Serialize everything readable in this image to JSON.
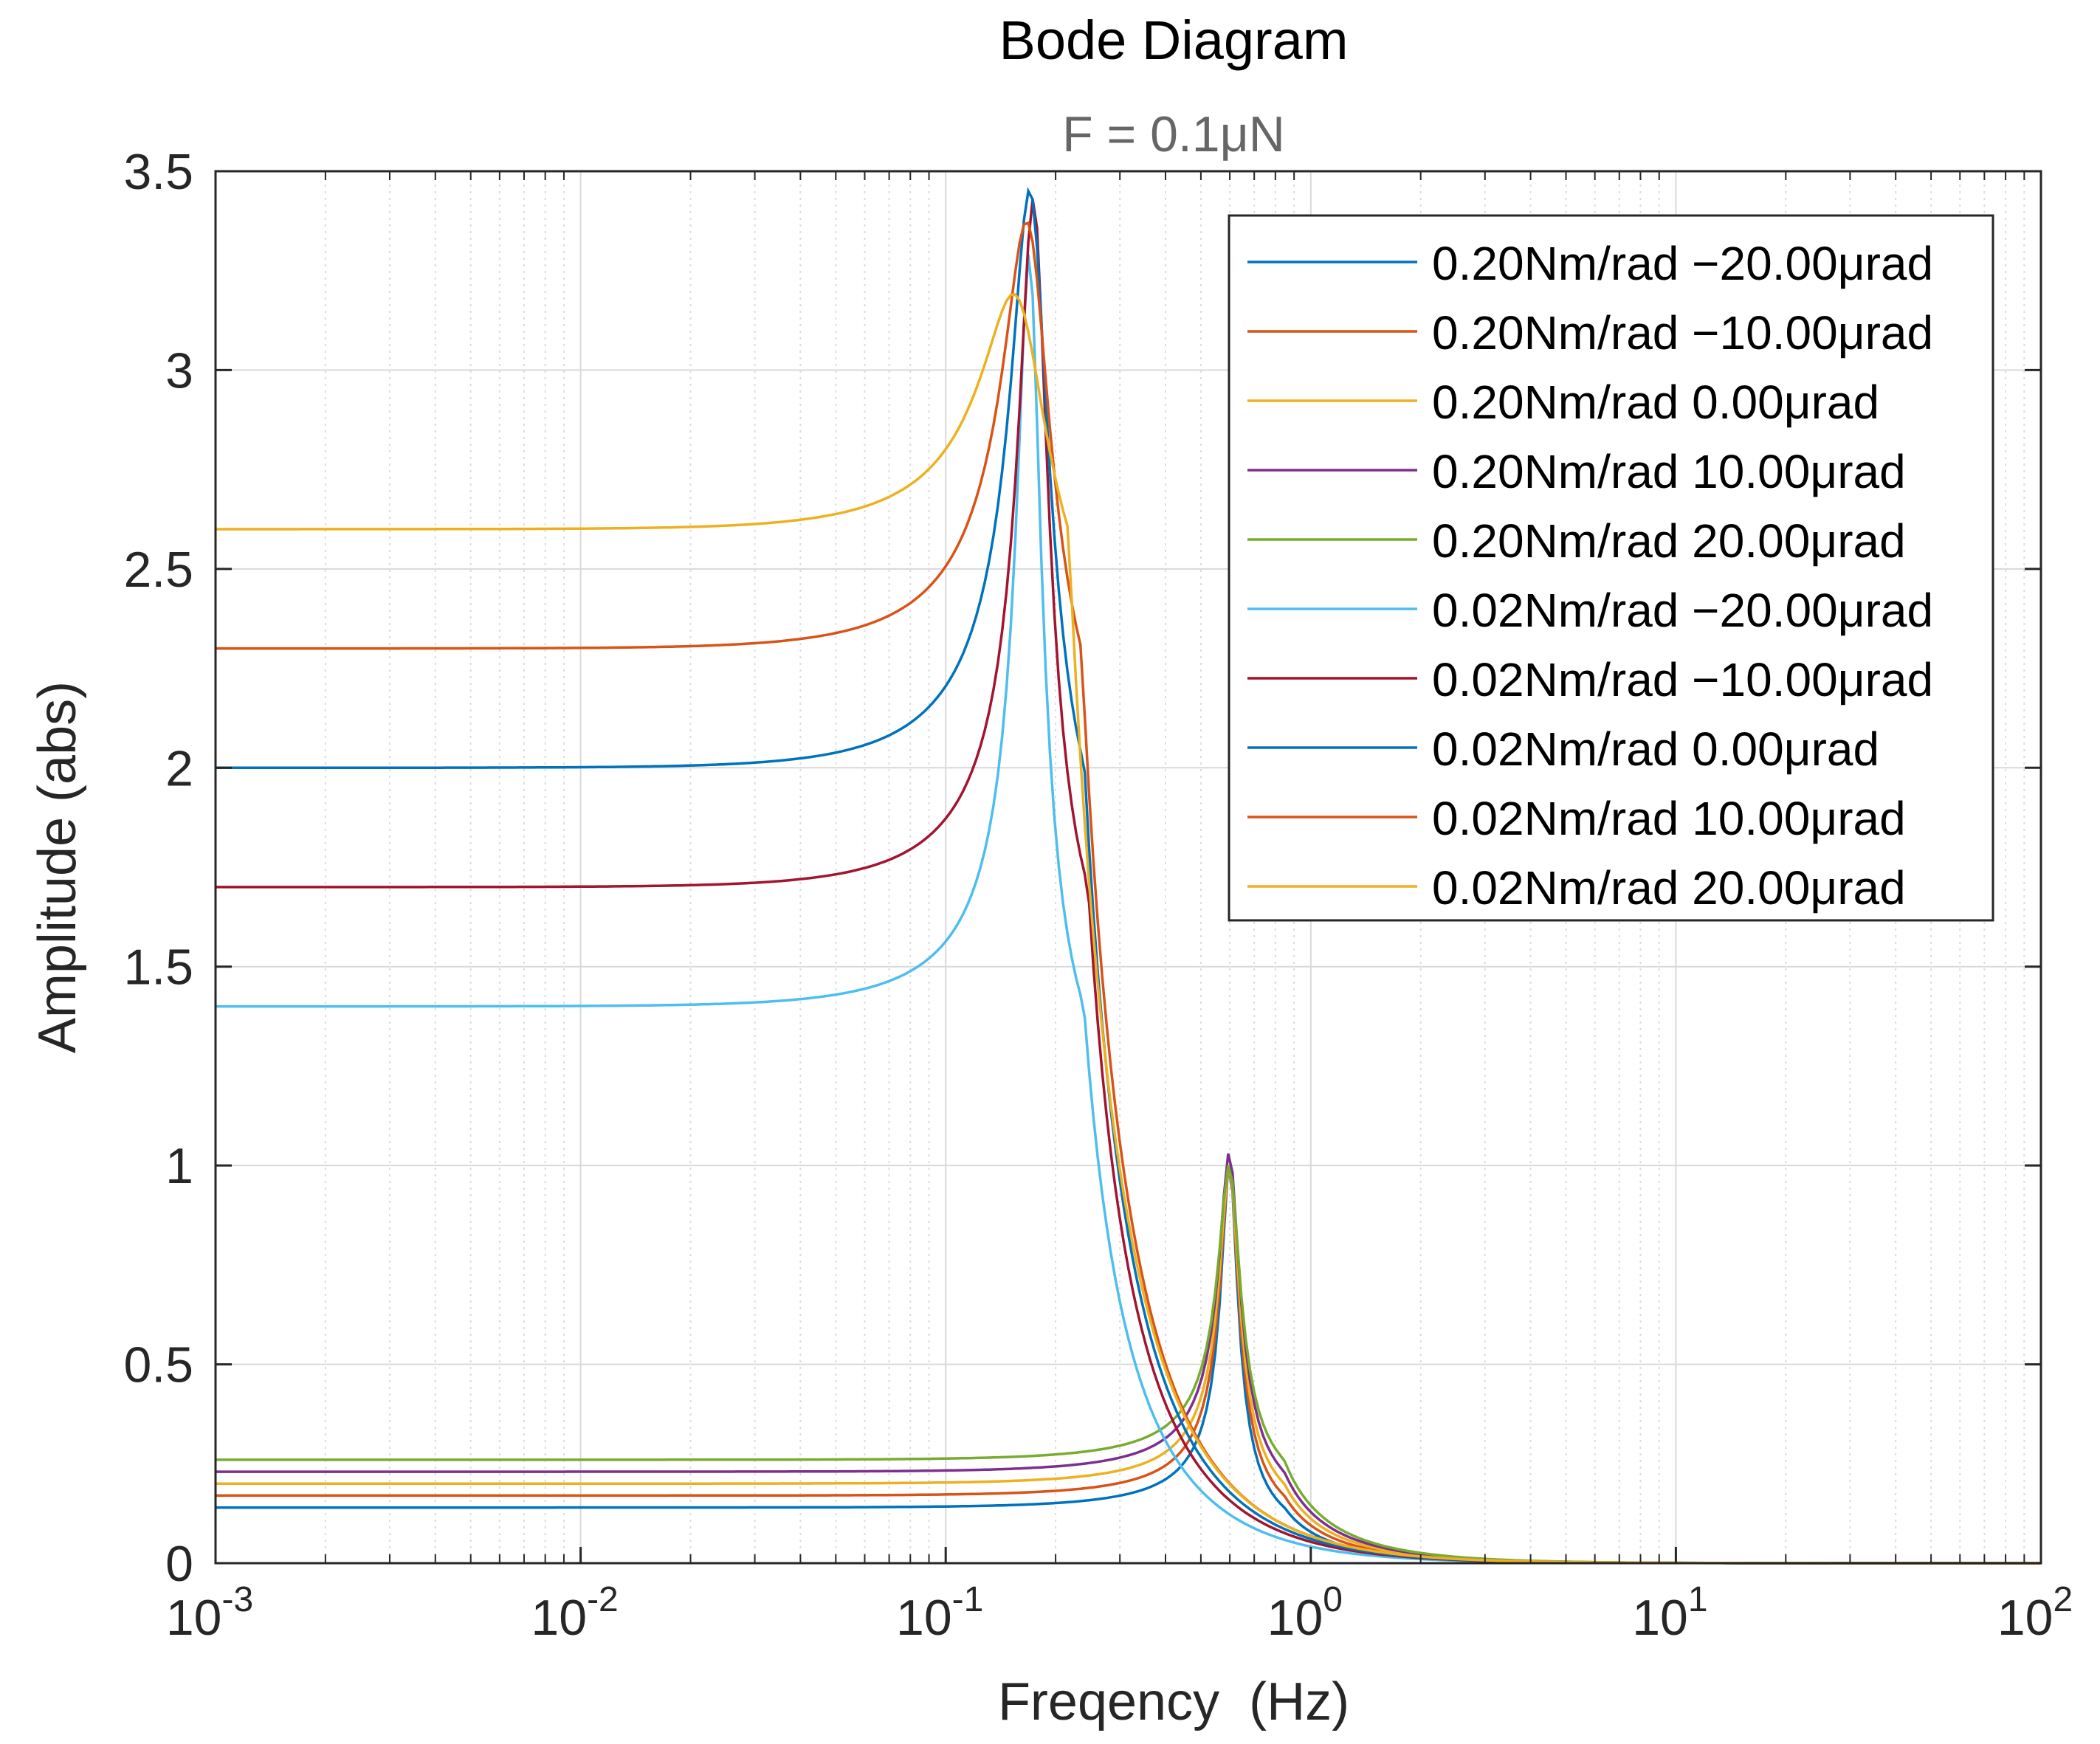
{
  "chart_data": {
    "type": "line",
    "title": "Bode Diagram",
    "subtitle": "F = 0.1μN",
    "xlabel": "Freqency  (Hz)",
    "ylabel": "Amplitude (abs)",
    "xscale": "log",
    "xlim": [
      0.001,
      100
    ],
    "ylim": [
      0,
      3.5
    ],
    "grid": true,
    "legend_position": "top-right",
    "x_ticks": [
      {
        "value": 0.001,
        "base": "10",
        "exp": "-3"
      },
      {
        "value": 0.01,
        "base": "10",
        "exp": "-2"
      },
      {
        "value": 0.1,
        "base": "10",
        "exp": "-1"
      },
      {
        "value": 1,
        "base": "10",
        "exp": "0"
      },
      {
        "value": 10,
        "base": "10",
        "exp": "1"
      },
      {
        "value": 100,
        "base": "10",
        "exp": "2"
      }
    ],
    "y_ticks": [
      {
        "value": 0,
        "label": "0"
      },
      {
        "value": 0.5,
        "label": "0.5"
      },
      {
        "value": 1,
        "label": "1"
      },
      {
        "value": 1.5,
        "label": "1.5"
      },
      {
        "value": 2,
        "label": "2"
      },
      {
        "value": 2.5,
        "label": "2.5"
      },
      {
        "value": 3,
        "label": "3"
      },
      {
        "value": 3.5,
        "label": "3.5"
      }
    ],
    "series": [
      {
        "name": "0.20Nm/rad −20.00μrad",
        "color": "#0072BD",
        "dc": 0.14,
        "peak_freq": 0.6,
        "peak_amp": 1.0,
        "q_width": 0.25
      },
      {
        "name": "0.20Nm/rad −10.00μrad",
        "color": "#D95319",
        "dc": 0.17,
        "peak_freq": 0.6,
        "peak_amp": 1.0,
        "q_width": 0.25
      },
      {
        "name": "0.20Nm/rad 0.00μrad",
        "color": "#EDB120",
        "dc": 0.2,
        "peak_freq": 0.6,
        "peak_amp": 1.0,
        "q_width": 0.25
      },
      {
        "name": "0.20Nm/rad 10.00μrad",
        "color": "#7E2F8E",
        "dc": 0.23,
        "peak_freq": 0.6,
        "peak_amp": 1.03,
        "q_width": 0.25
      },
      {
        "name": "0.20Nm/rad 20.00μrad",
        "color": "#77AC30",
        "dc": 0.26,
        "peak_freq": 0.6,
        "peak_amp": 1.0,
        "q_width": 0.25
      },
      {
        "name": "0.02Nm/rad −20.00μrad",
        "color": "#4DBEEE",
        "dc": 1.4,
        "peak_freq": 0.17,
        "peak_amp": 3.29,
        "q_width": 0.22
      },
      {
        "name": "0.02Nm/rad −10.00μrad",
        "color": "#A2142F",
        "dc": 1.7,
        "peak_freq": 0.175,
        "peak_amp": 3.43,
        "q_width": 0.25
      },
      {
        "name": "0.02Nm/rad 0.00μrad",
        "color": "#0072BD",
        "dc": 2.0,
        "peak_freq": 0.172,
        "peak_amp": 3.45,
        "q_width": 0.3
      },
      {
        "name": "0.02Nm/rad 10.00μrad",
        "color": "#D95319",
        "dc": 2.3,
        "peak_freq": 0.17,
        "peak_amp": 3.37,
        "q_width": 0.35
      },
      {
        "name": "0.02Nm/rad 20.00μrad",
        "color": "#EDB120",
        "dc": 2.6,
        "peak_freq": 0.16,
        "peak_amp": 3.19,
        "q_width": 0.45
      }
    ]
  }
}
